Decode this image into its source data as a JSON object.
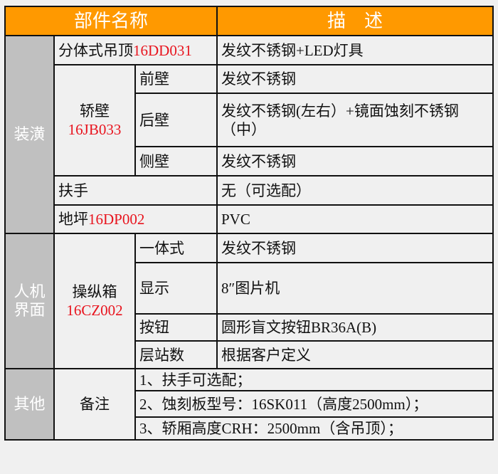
{
  "header": {
    "name": "部件名称",
    "description": "描　述"
  },
  "colors": {
    "header_bg": "#ff9900",
    "category_bg": "#c0c0c0",
    "code_text": "#e8141e"
  },
  "sections": [
    {
      "category": "装潢",
      "rows": [
        {
          "part": "分体式吊顶",
          "code": "16DD031",
          "desc": "发纹不锈钢+LED灯具"
        },
        {
          "part": "轿壁",
          "code": "16JB033",
          "subs": [
            {
              "name": "前壁",
              "desc": "发纹不锈钢"
            },
            {
              "name": "后壁",
              "desc": "发纹不锈钢(左右）+镜面蚀刻不锈钢（中）"
            },
            {
              "name": "侧壁",
              "desc": "发纹不锈钢"
            }
          ]
        },
        {
          "part": "扶手",
          "desc": "无（可选配）"
        },
        {
          "part": "地坪",
          "code": "16DP002",
          "desc": "PVC"
        }
      ]
    },
    {
      "category": "人机界面",
      "part": "操纵箱",
      "code": "16CZ002",
      "subs": [
        {
          "name": "一体式",
          "desc": "发纹不锈钢"
        },
        {
          "name": "显示",
          "desc": "8″图片机"
        },
        {
          "name": "按钮",
          "desc": "圆形盲文按钮BR36A(B)"
        },
        {
          "name": "层站数",
          "desc": "根据客户定义"
        }
      ]
    },
    {
      "category": "其他",
      "part": "备注",
      "notes": [
        "1、扶手可选配；",
        "2、蚀刻板型号：16SK011（高度2500mm）；",
        "3、轿厢高度CRH：2500mm（含吊顶）；"
      ]
    }
  ]
}
